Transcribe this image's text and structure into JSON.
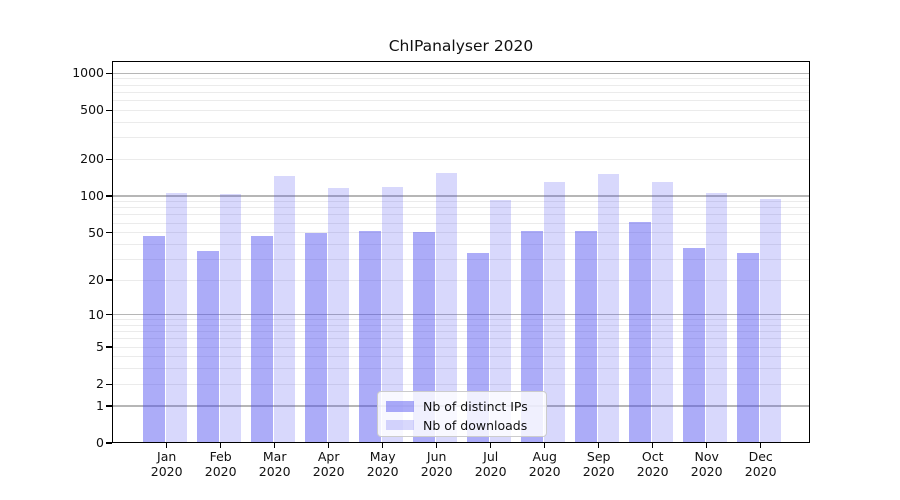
{
  "title": "ChIPanalyser 2020",
  "chart_data": {
    "type": "bar",
    "title": "ChIPanalyser 2020",
    "categories": [
      "Jan 2020",
      "Feb 2020",
      "Mar 2020",
      "Apr 2020",
      "May 2020",
      "Jun 2020",
      "Jul 2020",
      "Aug 2020",
      "Sep 2020",
      "Oct 2020",
      "Nov 2020",
      "Dec 2020"
    ],
    "months": [
      "Jan",
      "Feb",
      "Mar",
      "Apr",
      "May",
      "Jun",
      "Jul",
      "Aug",
      "Sep",
      "Oct",
      "Nov",
      "Dec"
    ],
    "year_label": "2020",
    "series": [
      {
        "name": "Nb of distinct IPs",
        "color": "rgba(70,70,240,0.45)",
        "values": [
          47,
          35,
          47,
          50,
          52,
          51,
          34,
          52,
          52,
          61,
          37,
          34
        ]
      },
      {
        "name": "Nb of downloads",
        "color": "rgba(70,70,240,0.21)",
        "values": [
          105,
          104,
          145,
          116,
          118,
          153,
          93,
          130,
          152,
          130,
          105,
          95
        ]
      }
    ],
    "xlabel": "",
    "ylabel": "",
    "y_scale": "log1p",
    "ylim": [
      0,
      1258
    ],
    "y_ticks": [
      0,
      1,
      2,
      5,
      10,
      20,
      50,
      100,
      200,
      500,
      1000
    ],
    "grid": {
      "major": [
        1,
        10,
        100,
        1000
      ],
      "minor": [
        2,
        3,
        4,
        5,
        6,
        7,
        8,
        9,
        20,
        30,
        40,
        50,
        60,
        70,
        80,
        90,
        200,
        300,
        400,
        500,
        600,
        700,
        800,
        900
      ]
    },
    "legend_position": "lower center",
    "colors": {
      "bar_dark": "rgba(70,70,240,0.45)",
      "bar_light": "rgba(70,70,240,0.21)",
      "grid_major": "#b6b6b6",
      "grid_minor": "#ebebeb",
      "spine": "#000000",
      "background": "#ffffff"
    }
  }
}
